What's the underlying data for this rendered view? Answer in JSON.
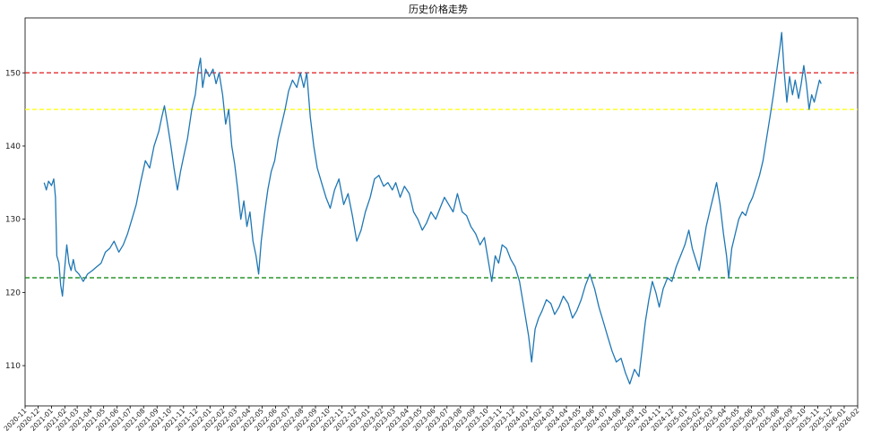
{
  "chart_data": {
    "type": "line",
    "title": "历史价格走势",
    "xlabel": "",
    "ylabel": "",
    "xlim": [
      "2020-11-01",
      "2026-02-01"
    ],
    "ylim": [
      104.5,
      157.5
    ],
    "yticks": [
      110,
      120,
      130,
      140,
      150
    ],
    "xticks": [
      "2020-11",
      "2020-12",
      "2021-01",
      "2021-02",
      "2021-03",
      "2021-04",
      "2021-05",
      "2021-06",
      "2021-07",
      "2021-08",
      "2021-09",
      "2021-10",
      "2021-11",
      "2021-12",
      "2022-01",
      "2022-02",
      "2022-03",
      "2022-04",
      "2022-05",
      "2022-06",
      "2022-07",
      "2022-08",
      "2022-09",
      "2022-10",
      "2022-11",
      "2022-12",
      "2023-01",
      "2023-02",
      "2023-03",
      "2023-04",
      "2023-05",
      "2023-06",
      "2023-07",
      "2023-08",
      "2023-09",
      "2023-10",
      "2023-11",
      "2023-12",
      "2024-01",
      "2024-02",
      "2024-03",
      "2024-04",
      "2024-05",
      "2024-06",
      "2024-07",
      "2024-08",
      "2024-09",
      "2024-10",
      "2024-11",
      "2024-12",
      "2025-01",
      "2025-02",
      "2025-03",
      "2025-04",
      "2025-05",
      "2025-06",
      "2025-07",
      "2025-08",
      "2025-09",
      "2025-10",
      "2025-11",
      "2025-12",
      "2026-01",
      "2026-02"
    ],
    "grid": false,
    "line_color": "#1f77b4",
    "hlines": [
      {
        "y": 150,
        "color": "#e31a1c",
        "style": "dashed"
      },
      {
        "y": 145,
        "color": "#ffff00",
        "style": "dashed"
      },
      {
        "y": 122,
        "color": "#008000",
        "style": "dashed"
      }
    ],
    "series": [
      {
        "points": [
          [
            "2020-12-15",
            135.0
          ],
          [
            "2020-12-20",
            134.0
          ],
          [
            "2020-12-25",
            135.2
          ],
          [
            "2021-01-01",
            134.6
          ],
          [
            "2021-01-06",
            135.5
          ],
          [
            "2021-01-10",
            133.0
          ],
          [
            "2021-01-13",
            125.0
          ],
          [
            "2021-01-18",
            124.0
          ],
          [
            "2021-01-22",
            121.0
          ],
          [
            "2021-01-26",
            119.5
          ],
          [
            "2021-01-30",
            122.5
          ],
          [
            "2021-02-05",
            126.5
          ],
          [
            "2021-02-10",
            124.0
          ],
          [
            "2021-02-15",
            123.0
          ],
          [
            "2021-02-20",
            124.5
          ],
          [
            "2021-02-25",
            123.0
          ],
          [
            "2021-03-05",
            122.5
          ],
          [
            "2021-03-15",
            121.5
          ],
          [
            "2021-03-25",
            122.5
          ],
          [
            "2021-04-05",
            123.0
          ],
          [
            "2021-04-15",
            123.5
          ],
          [
            "2021-04-25",
            124.0
          ],
          [
            "2021-05-05",
            125.5
          ],
          [
            "2021-05-15",
            126.0
          ],
          [
            "2021-05-25",
            127.0
          ],
          [
            "2021-06-05",
            125.5
          ],
          [
            "2021-06-15",
            126.5
          ],
          [
            "2021-06-25",
            128.0
          ],
          [
            "2021-07-05",
            130.0
          ],
          [
            "2021-07-15",
            132.0
          ],
          [
            "2021-07-25",
            135.0
          ],
          [
            "2021-08-05",
            138.0
          ],
          [
            "2021-08-15",
            137.0
          ],
          [
            "2021-08-25",
            140.0
          ],
          [
            "2021-09-05",
            142.0
          ],
          [
            "2021-09-12",
            144.0
          ],
          [
            "2021-09-18",
            145.5
          ],
          [
            "2021-09-25",
            143.0
          ],
          [
            "2021-10-03",
            140.0
          ],
          [
            "2021-10-10",
            137.0
          ],
          [
            "2021-10-18",
            134.0
          ],
          [
            "2021-10-25",
            136.5
          ],
          [
            "2021-11-01",
            138.5
          ],
          [
            "2021-11-10",
            141.0
          ],
          [
            "2021-11-20",
            145.0
          ],
          [
            "2021-11-28",
            147.0
          ],
          [
            "2021-12-05",
            150.5
          ],
          [
            "2021-12-10",
            152.0
          ],
          [
            "2021-12-15",
            148.0
          ],
          [
            "2021-12-22",
            150.5
          ],
          [
            "2021-12-30",
            149.5
          ],
          [
            "2022-01-08",
            150.5
          ],
          [
            "2022-01-15",
            148.5
          ],
          [
            "2022-01-22",
            150.0
          ],
          [
            "2022-01-30",
            147.0
          ],
          [
            "2022-02-06",
            143.0
          ],
          [
            "2022-02-13",
            145.0
          ],
          [
            "2022-02-20",
            140.0
          ],
          [
            "2022-02-27",
            137.5
          ],
          [
            "2022-03-06",
            134.0
          ],
          [
            "2022-03-13",
            130.0
          ],
          [
            "2022-03-20",
            132.5
          ],
          [
            "2022-03-27",
            129.0
          ],
          [
            "2022-04-03",
            131.0
          ],
          [
            "2022-04-10",
            127.0
          ],
          [
            "2022-04-17",
            125.0
          ],
          [
            "2022-04-23",
            122.5
          ],
          [
            "2022-04-29",
            127.0
          ],
          [
            "2022-05-06",
            130.5
          ],
          [
            "2022-05-14",
            134.0
          ],
          [
            "2022-05-22",
            136.5
          ],
          [
            "2022-05-30",
            138.0
          ],
          [
            "2022-06-07",
            141.0
          ],
          [
            "2022-06-15",
            143.0
          ],
          [
            "2022-06-23",
            145.0
          ],
          [
            "2022-07-01",
            147.5
          ],
          [
            "2022-07-10",
            149.0
          ],
          [
            "2022-07-20",
            148.0
          ],
          [
            "2022-07-28",
            150.0
          ],
          [
            "2022-08-05",
            148.0
          ],
          [
            "2022-08-12",
            150.0
          ],
          [
            "2022-08-20",
            144.0
          ],
          [
            "2022-08-28",
            140.0
          ],
          [
            "2022-09-05",
            137.0
          ],
          [
            "2022-09-15",
            135.0
          ],
          [
            "2022-09-25",
            133.0
          ],
          [
            "2022-10-05",
            131.5
          ],
          [
            "2022-10-15",
            134.0
          ],
          [
            "2022-10-25",
            135.5
          ],
          [
            "2022-11-05",
            132.0
          ],
          [
            "2022-11-15",
            133.5
          ],
          [
            "2022-11-25",
            130.5
          ],
          [
            "2022-12-05",
            127.0
          ],
          [
            "2022-12-15",
            128.5
          ],
          [
            "2022-12-25",
            131.0
          ],
          [
            "2023-01-05",
            133.0
          ],
          [
            "2023-01-15",
            135.5
          ],
          [
            "2023-01-25",
            136.0
          ],
          [
            "2023-02-05",
            134.5
          ],
          [
            "2023-02-15",
            135.0
          ],
          [
            "2023-02-25",
            134.0
          ],
          [
            "2023-03-05",
            135.0
          ],
          [
            "2023-03-15",
            133.0
          ],
          [
            "2023-03-25",
            134.5
          ],
          [
            "2023-04-05",
            133.5
          ],
          [
            "2023-04-15",
            131.0
          ],
          [
            "2023-04-25",
            130.0
          ],
          [
            "2023-05-05",
            128.5
          ],
          [
            "2023-05-15",
            129.5
          ],
          [
            "2023-05-25",
            131.0
          ],
          [
            "2023-06-05",
            130.0
          ],
          [
            "2023-06-15",
            131.5
          ],
          [
            "2023-06-25",
            133.0
          ],
          [
            "2023-07-05",
            132.0
          ],
          [
            "2023-07-15",
            131.0
          ],
          [
            "2023-07-25",
            133.5
          ],
          [
            "2023-08-05",
            131.0
          ],
          [
            "2023-08-15",
            130.5
          ],
          [
            "2023-08-25",
            129.0
          ],
          [
            "2023-09-05",
            128.0
          ],
          [
            "2023-09-15",
            126.5
          ],
          [
            "2023-09-25",
            127.5
          ],
          [
            "2023-10-05",
            124.0
          ],
          [
            "2023-10-12",
            121.5
          ],
          [
            "2023-10-20",
            125.0
          ],
          [
            "2023-10-28",
            124.0
          ],
          [
            "2023-11-05",
            126.5
          ],
          [
            "2023-11-15",
            126.0
          ],
          [
            "2023-11-25",
            124.5
          ],
          [
            "2023-12-05",
            123.5
          ],
          [
            "2023-12-15",
            121.5
          ],
          [
            "2023-12-25",
            118.0
          ],
          [
            "2024-01-05",
            114.0
          ],
          [
            "2024-01-12",
            110.5
          ],
          [
            "2024-01-20",
            115.0
          ],
          [
            "2024-01-28",
            116.5
          ],
          [
            "2024-02-05",
            117.5
          ],
          [
            "2024-02-15",
            119.0
          ],
          [
            "2024-02-25",
            118.5
          ],
          [
            "2024-03-05",
            117.0
          ],
          [
            "2024-03-15",
            118.0
          ],
          [
            "2024-03-25",
            119.5
          ],
          [
            "2024-04-05",
            118.5
          ],
          [
            "2024-04-15",
            116.5
          ],
          [
            "2024-04-25",
            117.5
          ],
          [
            "2024-05-05",
            119.0
          ],
          [
            "2024-05-15",
            121.0
          ],
          [
            "2024-05-25",
            122.5
          ],
          [
            "2024-06-05",
            120.5
          ],
          [
            "2024-06-15",
            118.0
          ],
          [
            "2024-06-25",
            116.0
          ],
          [
            "2024-07-05",
            114.0
          ],
          [
            "2024-07-15",
            112.0
          ],
          [
            "2024-07-25",
            110.5
          ],
          [
            "2024-08-05",
            111.0
          ],
          [
            "2024-08-15",
            109.0
          ],
          [
            "2024-08-25",
            107.5
          ],
          [
            "2024-09-05",
            109.5
          ],
          [
            "2024-09-15",
            108.5
          ],
          [
            "2024-09-22",
            112.0
          ],
          [
            "2024-09-30",
            116.0
          ],
          [
            "2024-10-08",
            119.0
          ],
          [
            "2024-10-16",
            121.5
          ],
          [
            "2024-10-24",
            120.0
          ],
          [
            "2024-11-01",
            118.0
          ],
          [
            "2024-11-10",
            120.5
          ],
          [
            "2024-11-20",
            122.0
          ],
          [
            "2024-11-30",
            121.5
          ],
          [
            "2024-12-10",
            123.5
          ],
          [
            "2024-12-20",
            125.0
          ],
          [
            "2024-12-30",
            126.5
          ],
          [
            "2025-01-08",
            128.5
          ],
          [
            "2025-01-16",
            126.0
          ],
          [
            "2025-01-24",
            124.5
          ],
          [
            "2025-02-01",
            123.0
          ],
          [
            "2025-02-09",
            126.0
          ],
          [
            "2025-02-17",
            129.0
          ],
          [
            "2025-02-25",
            131.0
          ],
          [
            "2025-03-05",
            133.0
          ],
          [
            "2025-03-13",
            135.0
          ],
          [
            "2025-03-21",
            132.0
          ],
          [
            "2025-03-29",
            128.0
          ],
          [
            "2025-04-05",
            125.0
          ],
          [
            "2025-04-10",
            122.0
          ],
          [
            "2025-04-17",
            126.0
          ],
          [
            "2025-04-25",
            128.0
          ],
          [
            "2025-05-03",
            130.0
          ],
          [
            "2025-05-11",
            131.0
          ],
          [
            "2025-05-19",
            130.5
          ],
          [
            "2025-05-27",
            132.0
          ],
          [
            "2025-06-04",
            133.0
          ],
          [
            "2025-06-12",
            134.5
          ],
          [
            "2025-06-20",
            136.0
          ],
          [
            "2025-06-28",
            138.0
          ],
          [
            "2025-07-06",
            141.0
          ],
          [
            "2025-07-14",
            144.0
          ],
          [
            "2025-07-22",
            147.0
          ],
          [
            "2025-07-30",
            150.5
          ],
          [
            "2025-08-06",
            153.5
          ],
          [
            "2025-08-10",
            155.5
          ],
          [
            "2025-08-16",
            150.0
          ],
          [
            "2025-08-22",
            146.0
          ],
          [
            "2025-08-28",
            149.5
          ],
          [
            "2025-09-04",
            147.0
          ],
          [
            "2025-09-10",
            149.0
          ],
          [
            "2025-09-18",
            146.5
          ],
          [
            "2025-09-24",
            148.5
          ],
          [
            "2025-09-30",
            151.0
          ],
          [
            "2025-10-06",
            148.5
          ],
          [
            "2025-10-12",
            145.0
          ],
          [
            "2025-10-18",
            147.0
          ],
          [
            "2025-10-24",
            146.0
          ],
          [
            "2025-10-30",
            147.5
          ],
          [
            "2025-11-05",
            149.0
          ],
          [
            "2025-11-09",
            148.5
          ]
        ]
      }
    ]
  }
}
